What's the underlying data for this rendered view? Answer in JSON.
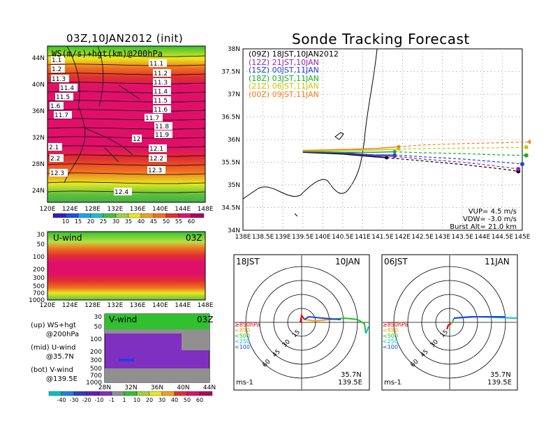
{
  "map_panel": {
    "title": "03Z,10JAN2012 (init)",
    "inner_label": "WS(m/s)+hgt(km)@200hPa",
    "x_ticks": [
      "120E",
      "124E",
      "128E",
      "132E",
      "136E",
      "140E",
      "144E",
      "148E"
    ],
    "y_ticks": [
      "24N",
      "28N",
      "32N",
      "36N",
      "40N",
      "44N"
    ],
    "contour_labels": [
      "1.1",
      "1.2",
      "11.3",
      "11.4",
      "11.5",
      "1.6",
      "11.7",
      "2.1",
      "2.2",
      "12.3",
      "11.1",
      "11.2",
      "11.3",
      "11.4",
      "11.5",
      "11.6",
      "11.7",
      "11.8",
      "11.9",
      "12",
      "12.1",
      "12.2",
      "12.3",
      "12.4"
    ],
    "colorbar_labels": [
      "10",
      "15",
      "20",
      "25",
      "30",
      "35",
      "40",
      "45",
      "50",
      "55",
      "60"
    ]
  },
  "uwind_panel": {
    "label": "U-wind",
    "time": "03Z",
    "y_ticks": [
      "30",
      "50",
      "100",
      "200",
      "300",
      "500",
      "700",
      "1000"
    ],
    "x_ticks": [
      "120E",
      "124E",
      "128E",
      "132E",
      "136E",
      "140E",
      "144E",
      "148E"
    ]
  },
  "vwind_panel": {
    "label": "V-wind",
    "time": "03Z",
    "y_ticks": [
      "30",
      "50",
      "100",
      "200",
      "300",
      "500",
      "700",
      "1000"
    ],
    "x_ticks": [
      "28N",
      "32N",
      "36N",
      "40N",
      "44N"
    ],
    "colorbar_labels": [
      "-40",
      "-30",
      "-20",
      "-10",
      "-1",
      "1",
      "10",
      "20",
      "30",
      "40",
      "50",
      "60"
    ]
  },
  "legend_notes": [
    {
      "line1": "(up) WS+hgt",
      "line2": "@200hPa"
    },
    {
      "line1": "(mid) U-wind",
      "line2": "@35.7N"
    },
    {
      "line1": "(bot) V-wind",
      "line2": "@139.5E"
    }
  ],
  "tracking": {
    "title": "Sonde Tracking Forecast",
    "launches": [
      {
        "code": "(09Z)",
        "local": "18JST,10JAN2012",
        "color": "#000000"
      },
      {
        "code": "(12Z)",
        "local": "21JST,10JAN",
        "color": "#9a1fb0"
      },
      {
        "code": "(15Z)",
        "local": "00JST,11JAN",
        "color": "#2040e0"
      },
      {
        "code": "(18Z)",
        "local": "03JST,11JAN",
        "color": "#10b020"
      },
      {
        "code": "(21Z)",
        "local": "06JST,11JAN",
        "color": "#c8c800"
      },
      {
        "code": "(00Z)",
        "local": "09JST,11JAN",
        "color": "#f08020"
      }
    ],
    "params": [
      "VUP= 4.5 m/s",
      "VDW= -3.0 m/s",
      "Burst Alt= 21.0 km"
    ],
    "x_ticks": [
      "138E",
      "138.5E",
      "139E",
      "139.5E",
      "140E",
      "140.5E",
      "141E",
      "141.5E",
      "142E",
      "142.5E",
      "143E",
      "143.5E",
      "144E",
      "144.5E",
      "145E"
    ],
    "y_ticks": [
      "34N",
      "34.5N",
      "35N",
      "35.5N",
      "36N",
      "36.5N",
      "37N",
      "37.5N",
      "38N"
    ]
  },
  "chart_data": {
    "type": "line",
    "title": "Sonde Tracking Forecast",
    "x_unit": "degE",
    "y_unit": "degN",
    "xlim": [
      138,
      145
    ],
    "ylim": [
      34,
      38
    ],
    "series": [
      {
        "name": "(09Z) 18JST,10JAN2012",
        "x": [
          139.5,
          140.5,
          141.3,
          141.6,
          142.5,
          143.5,
          144.5,
          144.9
        ],
        "y": [
          35.72,
          35.68,
          35.62,
          35.6,
          35.53,
          35.45,
          35.35,
          35.3
        ]
      },
      {
        "name": "(12Z) 21JST,10JAN",
        "x": [
          139.5,
          140.5,
          141.3,
          141.8,
          142.5,
          143.5,
          144.5,
          144.9
        ],
        "y": [
          35.73,
          35.7,
          35.64,
          35.63,
          35.57,
          35.5,
          35.4,
          35.35
        ]
      },
      {
        "name": "(15Z) 00JST,11JAN",
        "x": [
          139.5,
          140.5,
          141.3,
          141.8,
          142.5,
          143.5,
          144.5,
          145.0
        ],
        "y": [
          35.73,
          35.71,
          35.66,
          35.66,
          35.62,
          35.57,
          35.5,
          35.46
        ]
      },
      {
        "name": "(18Z) 03JST,11JAN",
        "x": [
          139.5,
          140.5,
          141.3,
          141.8,
          142.5,
          143.5,
          144.5,
          145.1
        ],
        "y": [
          35.74,
          35.72,
          35.72,
          35.73,
          35.71,
          35.69,
          35.66,
          35.65
        ]
      },
      {
        "name": "(21Z) 06JST,11JAN",
        "x": [
          139.5,
          140.5,
          141.3,
          141.9,
          142.5,
          143.5,
          144.5,
          145.1
        ],
        "y": [
          35.75,
          35.76,
          35.77,
          35.79,
          35.8,
          35.81,
          35.82,
          35.83
        ]
      },
      {
        "name": "(00Z) 09JST,11JAN",
        "x": [
          139.5,
          140.5,
          141.3,
          141.9,
          142.5,
          143.5,
          144.5,
          145.2
        ],
        "y": [
          35.76,
          35.78,
          35.8,
          35.84,
          35.88,
          35.91,
          35.93,
          35.95
        ]
      }
    ]
  },
  "polar_left": {
    "time": "18JST",
    "date": "10JAN",
    "ring_labels": [
      "15",
      "30",
      "45",
      "60"
    ],
    "levels": [
      "≥850hPa",
      "<850",
      "<500",
      "<250",
      "<100"
    ],
    "level_colors": [
      "#e00000",
      "#f0a000",
      "#20c020",
      "#00c0e0",
      "#2040e0"
    ],
    "position": [
      "35.7N",
      "139.5E"
    ],
    "unit": "ms-1"
  },
  "polar_right": {
    "time": "06JST",
    "date": "11JAN",
    "ring_labels": [
      "15",
      "30",
      "45",
      "60"
    ],
    "levels": [
      "≥850hPa",
      "<850",
      "<500",
      "<250",
      "<100"
    ],
    "level_colors": [
      "#e00000",
      "#f0a000",
      "#20c020",
      "#00c0e0",
      "#2040e0"
    ],
    "position": [
      "35.7N",
      "139.5E"
    ],
    "unit": "ms-1"
  }
}
